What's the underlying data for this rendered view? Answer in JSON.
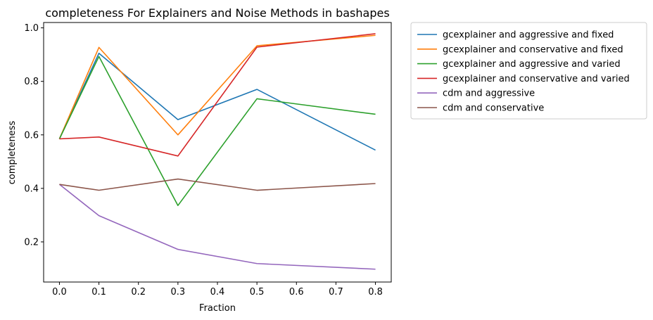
{
  "chart_data": {
    "type": "line",
    "title": "completeness For Explainers and Noise Methods in bashapes",
    "xlabel": "Fraction",
    "ylabel": "completeness",
    "xlim": [
      -0.04,
      0.84
    ],
    "ylim": [
      0.05,
      1.02
    ],
    "xticks": [
      0.0,
      0.1,
      0.2,
      0.3,
      0.4,
      0.5,
      0.6,
      0.7,
      0.8
    ],
    "xtick_labels": [
      "0.0",
      "0.1",
      "0.2",
      "0.3",
      "0.4",
      "0.5",
      "0.6",
      "0.7",
      "0.8"
    ],
    "yticks": [
      0.2,
      0.4,
      0.6,
      0.8,
      1.0
    ],
    "ytick_labels": [
      "0.2",
      "0.4",
      "0.6",
      "0.8",
      "1.0"
    ],
    "grid": false,
    "legend_position": "outside-right",
    "x": [
      0.0,
      0.1,
      0.3,
      0.5,
      0.8
    ],
    "series": [
      {
        "name": "gcexplainer and aggressive and fixed",
        "color": "#1f77b4",
        "values": [
          0.585,
          0.905,
          0.657,
          0.77,
          0.543
        ]
      },
      {
        "name": "gcexplainer and conservative and fixed",
        "color": "#ff7f0e",
        "values": [
          0.585,
          0.927,
          0.6,
          0.933,
          0.972
        ]
      },
      {
        "name": "gcexplainer and aggressive and varied",
        "color": "#2ca02c",
        "values": [
          0.585,
          0.893,
          0.336,
          0.735,
          0.677
        ]
      },
      {
        "name": "gcexplainer and conservative and varied",
        "color": "#d62728",
        "values": [
          0.585,
          0.592,
          0.521,
          0.928,
          0.978
        ]
      },
      {
        "name": "cdm and aggressive",
        "color": "#9467bd",
        "values": [
          0.415,
          0.298,
          0.172,
          0.119,
          0.098
        ]
      },
      {
        "name": "cdm and conservative",
        "color": "#8c564b",
        "values": [
          0.415,
          0.393,
          0.435,
          0.393,
          0.418
        ]
      }
    ]
  }
}
